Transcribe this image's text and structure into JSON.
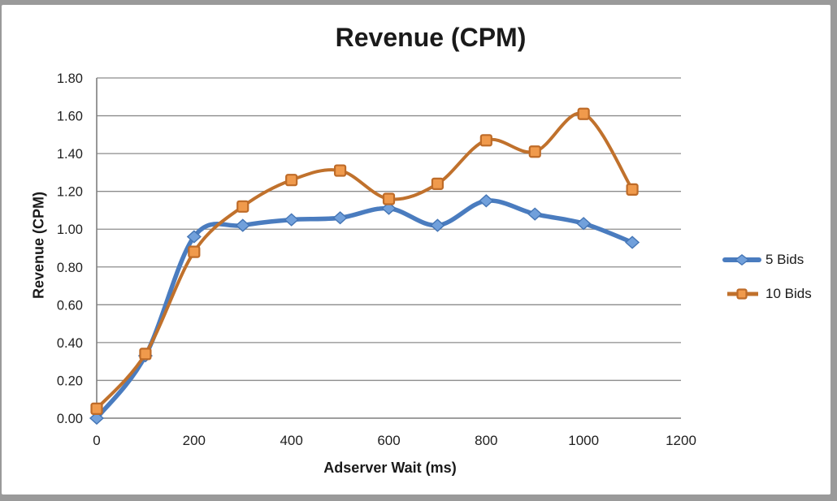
{
  "chart_data": {
    "type": "line",
    "title": "Revenue (CPM)",
    "xlabel": "Adserver Wait (ms)",
    "ylabel": "Revenue (CPM)",
    "xlim": [
      0,
      1200
    ],
    "ylim": [
      0,
      1.8
    ],
    "xticks": [
      "0",
      "200",
      "400",
      "600",
      "800",
      "1000",
      "1200"
    ],
    "yticks": [
      "0.00",
      "0.20",
      "0.40",
      "0.60",
      "0.80",
      "1.00",
      "1.20",
      "1.40",
      "1.60",
      "1.80"
    ],
    "grid": true,
    "legend_position": "right",
    "x": [
      0,
      100,
      200,
      300,
      400,
      500,
      600,
      700,
      800,
      900,
      1000,
      1100
    ],
    "series": [
      {
        "name": "5 Bids",
        "values": [
          0.0,
          0.33,
          0.96,
          1.02,
          1.05,
          1.06,
          1.11,
          1.02,
          1.15,
          1.08,
          1.03,
          0.93
        ],
        "marker": "diamond",
        "line_color": "#4a7cbf",
        "marker_fill": "#71a0db",
        "marker_stroke": "#4475b5",
        "line_width": 5.5
      },
      {
        "name": "10 Bids",
        "values": [
          0.05,
          0.34,
          0.88,
          1.12,
          1.26,
          1.31,
          1.16,
          1.24,
          1.47,
          1.41,
          1.61,
          1.21
        ],
        "marker": "square",
        "line_color": "#c0712c",
        "marker_fill": "#f09a4c",
        "marker_stroke": "#be6b28",
        "line_width": 4
      }
    ],
    "colors": {
      "gridline": "#8c8c8c",
      "axis_line": "#7f7f7f",
      "text": "#1f1f1f",
      "background": "#ffffff",
      "surround": "#9a9a9a"
    }
  }
}
